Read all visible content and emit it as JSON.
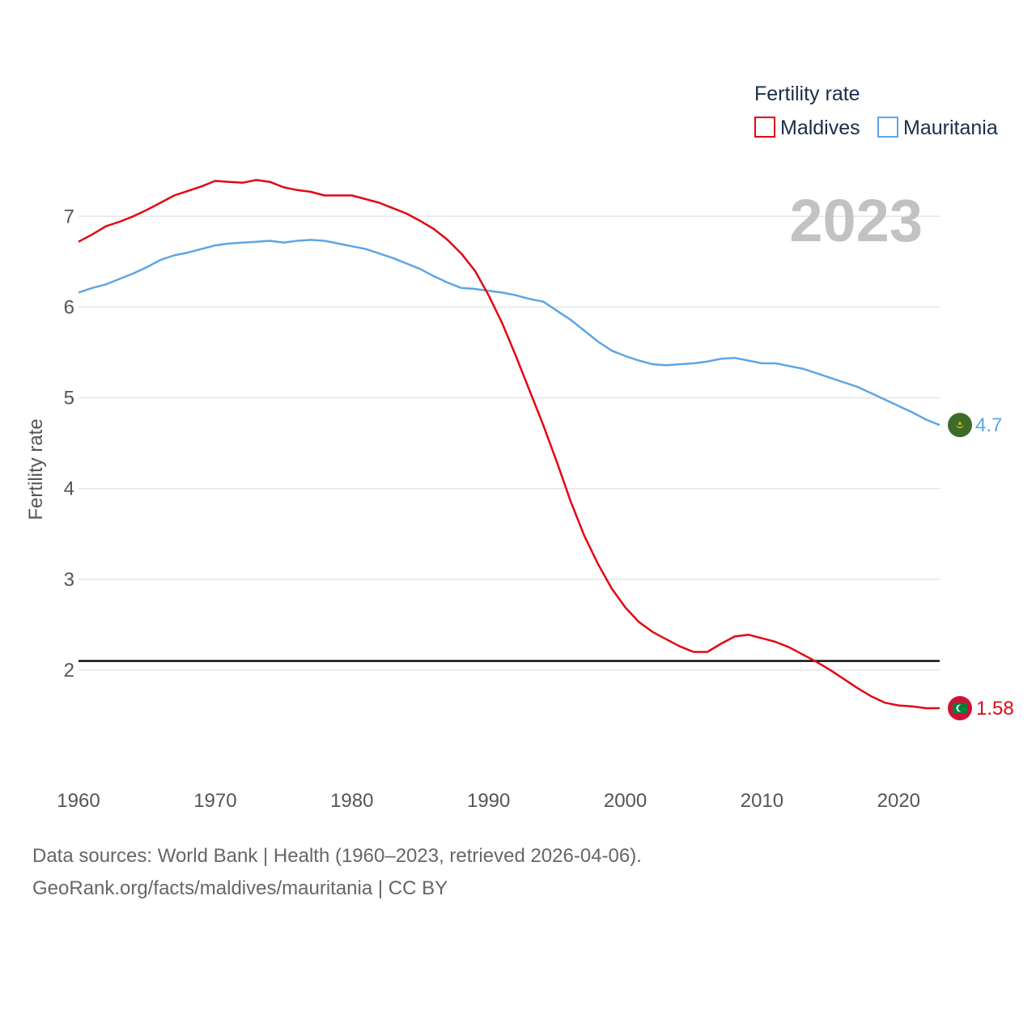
{
  "chart_data": {
    "type": "line",
    "legend_title": "Fertility rate",
    "ylabel": "Fertility rate",
    "year_label": "2023",
    "ylim": [
      1.0,
      7.6
    ],
    "xlim": [
      1960,
      2023
    ],
    "yticks": [
      2,
      3,
      4,
      5,
      6,
      7
    ],
    "xticks": [
      1960,
      1970,
      1980,
      1990,
      2000,
      2010,
      2020
    ],
    "reference_line": 2.1,
    "x": [
      1960,
      1961,
      1962,
      1963,
      1964,
      1965,
      1966,
      1967,
      1968,
      1969,
      1970,
      1971,
      1972,
      1973,
      1974,
      1975,
      1976,
      1977,
      1978,
      1979,
      1980,
      1981,
      1982,
      1983,
      1984,
      1985,
      1986,
      1987,
      1988,
      1989,
      1990,
      1991,
      1992,
      1993,
      1994,
      1995,
      1996,
      1997,
      1998,
      1999,
      2000,
      2001,
      2002,
      2003,
      2004,
      2005,
      2006,
      2007,
      2008,
      2009,
      2010,
      2011,
      2012,
      2013,
      2014,
      2015,
      2016,
      2017,
      2018,
      2019,
      2020,
      2021,
      2022,
      2023
    ],
    "series": [
      {
        "name": "Maldives",
        "color": "#e30613",
        "end_label": "1.58",
        "values": [
          6.72,
          6.8,
          6.89,
          6.94,
          7.0,
          7.07,
          7.15,
          7.23,
          7.28,
          7.33,
          7.39,
          7.38,
          7.37,
          7.4,
          7.38,
          7.32,
          7.29,
          7.27,
          7.23,
          7.23,
          7.23,
          7.19,
          7.15,
          7.09,
          7.03,
          6.95,
          6.86,
          6.74,
          6.59,
          6.4,
          6.13,
          5.82,
          5.46,
          5.08,
          4.7,
          4.29,
          3.86,
          3.48,
          3.17,
          2.9,
          2.69,
          2.53,
          2.42,
          2.34,
          2.26,
          2.2,
          2.2,
          2.29,
          2.37,
          2.39,
          2.35,
          2.31,
          2.25,
          2.17,
          2.09,
          2.0,
          1.9,
          1.8,
          1.71,
          1.64,
          1.61,
          1.6,
          1.58,
          1.58
        ]
      },
      {
        "name": "Mauritania",
        "color": "#5ca6e6",
        "end_label": "4.7",
        "values": [
          6.16,
          6.21,
          6.25,
          6.31,
          6.37,
          6.44,
          6.52,
          6.57,
          6.6,
          6.64,
          6.68,
          6.7,
          6.71,
          6.72,
          6.73,
          6.71,
          6.73,
          6.74,
          6.73,
          6.7,
          6.67,
          6.64,
          6.59,
          6.54,
          6.48,
          6.42,
          6.34,
          6.27,
          6.21,
          6.2,
          6.18,
          6.16,
          6.13,
          6.09,
          6.06,
          5.96,
          5.86,
          5.74,
          5.62,
          5.52,
          5.46,
          5.41,
          5.37,
          5.36,
          5.37,
          5.38,
          5.4,
          5.43,
          5.44,
          5.41,
          5.38,
          5.38,
          5.35,
          5.32,
          5.27,
          5.22,
          5.17,
          5.12,
          5.05,
          4.98,
          4.91,
          4.84,
          4.76,
          4.7
        ]
      }
    ]
  },
  "flags": {
    "mauritania": "flag-mauritania-icon",
    "maldives": "flag-maldives-icon"
  },
  "footer": {
    "line1": "Data sources: World Bank | Health (1960–2023, retrieved 2026-04-06).",
    "line2": "GeoRank.org/facts/maldives/mauritania | CC BY"
  }
}
